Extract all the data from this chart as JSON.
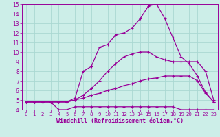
{
  "xlabel": "Windchill (Refroidissement éolien,°C)",
  "bg_color": "#cceee8",
  "grid_color": "#aad8d2",
  "line_color": "#990099",
  "xlim": [
    -0.5,
    23.5
  ],
  "ylim": [
    4,
    15
  ],
  "xticks": [
    0,
    1,
    2,
    3,
    4,
    5,
    6,
    7,
    8,
    9,
    10,
    11,
    12,
    13,
    14,
    15,
    16,
    17,
    18,
    19,
    20,
    21,
    22,
    23
  ],
  "yticks": [
    4,
    5,
    6,
    7,
    8,
    9,
    10,
    11,
    12,
    13,
    14,
    15
  ],
  "lines": [
    {
      "x": [
        0,
        1,
        2,
        3,
        4,
        5,
        6,
        7,
        8,
        9,
        10,
        11,
        12,
        13,
        14,
        15,
        16,
        17,
        18,
        19,
        20,
        21,
        22,
        23
      ],
      "y": [
        4.8,
        4.8,
        4.8,
        4.8,
        4.0,
        4.0,
        4.3,
        4.3,
        4.3,
        4.3,
        4.3,
        4.3,
        4.3,
        4.3,
        4.3,
        4.3,
        4.3,
        4.3,
        4.3,
        4.0,
        4.0,
        4.0,
        4.0,
        4.0
      ]
    },
    {
      "x": [
        0,
        1,
        2,
        3,
        4,
        5,
        6,
        7,
        8,
        9,
        10,
        11,
        12,
        13,
        14,
        15,
        16,
        17,
        18,
        19,
        20,
        21,
        22,
        23
      ],
      "y": [
        4.8,
        4.8,
        4.8,
        4.8,
        4.8,
        4.8,
        5.0,
        5.2,
        5.5,
        5.7,
        6.0,
        6.2,
        6.5,
        6.7,
        7.0,
        7.2,
        7.3,
        7.5,
        7.5,
        7.5,
        7.5,
        7.0,
        5.7,
        4.8
      ]
    },
    {
      "x": [
        0,
        1,
        2,
        3,
        4,
        5,
        6,
        7,
        8,
        9,
        10,
        11,
        12,
        13,
        14,
        15,
        16,
        17,
        18,
        19,
        20,
        21,
        22,
        23
      ],
      "y": [
        4.8,
        4.8,
        4.8,
        4.8,
        4.8,
        4.8,
        5.0,
        5.5,
        6.2,
        7.0,
        8.0,
        8.8,
        9.5,
        9.8,
        10.0,
        10.0,
        9.5,
        9.2,
        9.0,
        9.0,
        9.0,
        9.0,
        8.0,
        5.0
      ]
    },
    {
      "x": [
        0,
        1,
        2,
        3,
        4,
        5,
        6,
        7,
        8,
        9,
        10,
        11,
        12,
        13,
        14,
        15,
        16,
        17,
        18,
        19,
        20,
        21,
        22,
        23
      ],
      "y": [
        4.8,
        4.8,
        4.8,
        4.8,
        4.8,
        4.8,
        5.2,
        8.0,
        8.5,
        10.5,
        10.8,
        11.8,
        12.0,
        12.5,
        13.5,
        14.8,
        15.0,
        13.5,
        11.5,
        9.5,
        8.8,
        7.5,
        5.8,
        4.8
      ]
    }
  ],
  "xlabel_fontsize": 6.0,
  "tick_fontsize_x": 5.0,
  "tick_fontsize_y": 5.5
}
